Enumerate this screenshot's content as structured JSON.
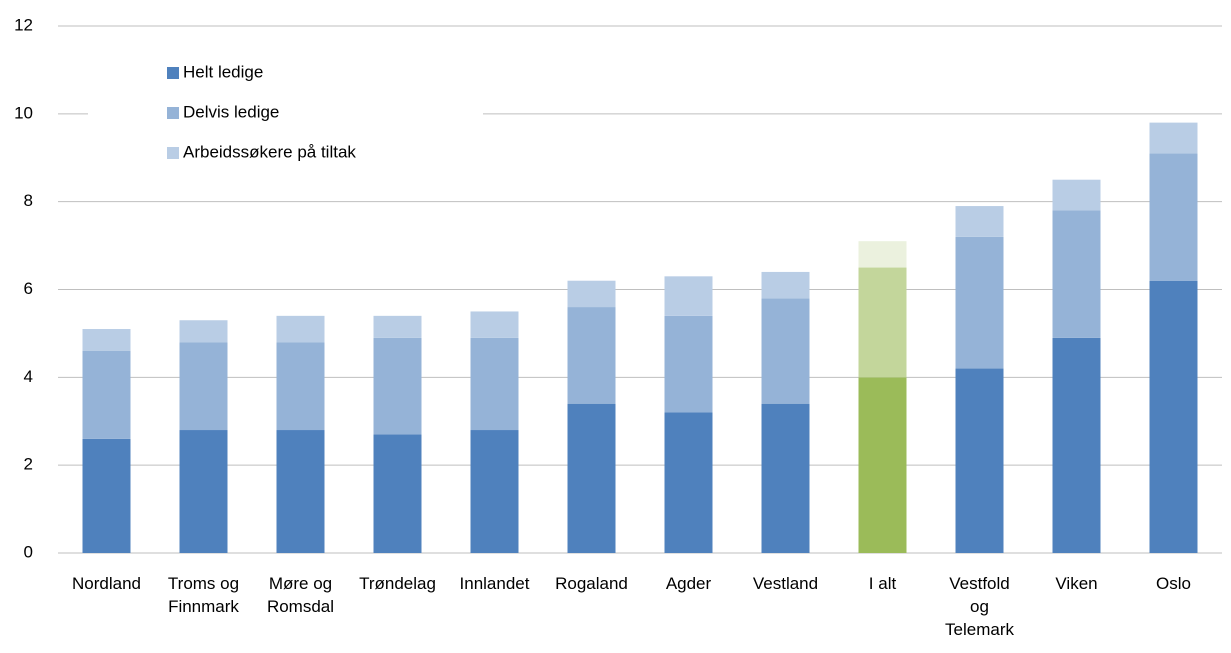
{
  "chart_data": {
    "type": "stacked_bar",
    "categories": [
      "Nordland",
      "Troms og Finnmark",
      "Møre og Romsdal",
      "Trøndelag",
      "Innlandet",
      "Rogaland",
      "Agder",
      "Vestland",
      "I alt",
      "Vestfold og Telemark",
      "Viken",
      "Oslo"
    ],
    "series": [
      {
        "name": "Helt ledige",
        "color": "#4f81bd",
        "values": [
          2.6,
          2.8,
          2.8,
          2.7,
          2.8,
          3.4,
          3.2,
          3.4,
          4.0,
          4.2,
          4.9,
          6.2
        ],
        "colors": [
          "#4f81bd",
          "#4f81bd",
          "#4f81bd",
          "#4f81bd",
          "#4f81bd",
          "#4f81bd",
          "#4f81bd",
          "#4f81bd",
          "#9bbb59",
          "#4f81bd",
          "#4f81bd",
          "#4f81bd"
        ]
      },
      {
        "name": "Delvis ledige",
        "color": "#95b3d7",
        "values": [
          2.0,
          2.0,
          2.0,
          2.2,
          2.1,
          2.2,
          2.2,
          2.4,
          2.5,
          3.0,
          2.9,
          2.9
        ],
        "colors": [
          "#95b3d7",
          "#95b3d7",
          "#95b3d7",
          "#95b3d7",
          "#95b3d7",
          "#95b3d7",
          "#95b3d7",
          "#95b3d7",
          "#c3d69b",
          "#95b3d7",
          "#95b3d7",
          "#95b3d7"
        ]
      },
      {
        "name": "Arbeidssøkere på tiltak",
        "color": "#b9cde5",
        "values": [
          0.5,
          0.5,
          0.6,
          0.5,
          0.6,
          0.6,
          0.9,
          0.6,
          0.6,
          0.7,
          0.7,
          0.7
        ],
        "colors": [
          "#b9cde5",
          "#b9cde5",
          "#b9cde5",
          "#b9cde5",
          "#b9cde5",
          "#b9cde5",
          "#b9cde5",
          "#b9cde5",
          "#ebf1de",
          "#b9cde5",
          "#b9cde5",
          "#b9cde5"
        ]
      }
    ],
    "ylim": [
      0,
      12
    ],
    "yticks": [
      0,
      2,
      4,
      6,
      8,
      10,
      12
    ],
    "grid": true,
    "legend": "top-left"
  }
}
